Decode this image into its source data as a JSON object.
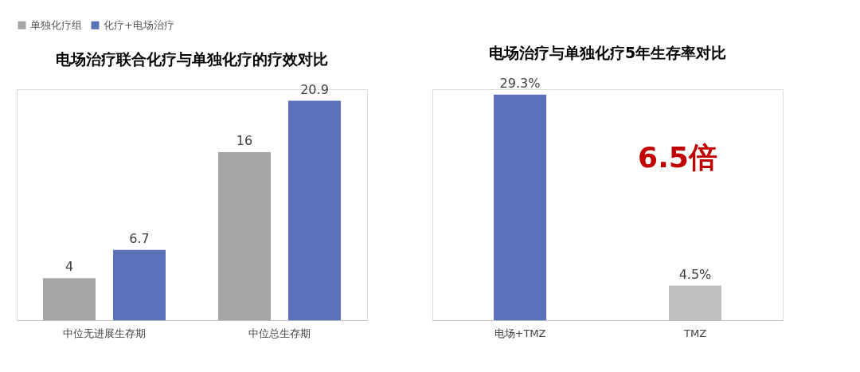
{
  "chart_data": [
    {
      "type": "bar",
      "title": "电场治疗联合化疗与单独化疗的疗效对比",
      "categories": [
        "中位无进展生存期",
        "中位总生存期"
      ],
      "series": [
        {
          "name": "单独化疗组",
          "color": "#a5a5a5",
          "values": [
            4,
            16
          ]
        },
        {
          "name": "化疗+电场治疗",
          "color": "#5b72b8",
          "values": [
            6.7,
            20.9
          ]
        }
      ],
      "data_labels": true,
      "legend": "top",
      "grid": false
    },
    {
      "type": "bar",
      "title": "电场治疗与单独化疗5年生存率对比",
      "categories": [
        "电场+TMZ",
        "TMZ"
      ],
      "values": [
        29.3,
        4.5
      ],
      "colors": [
        "#5b72b8",
        "#bfbfbf"
      ],
      "value_labels": [
        "29.3%",
        "4.5%"
      ],
      "annotations": [
        "6.5倍"
      ],
      "grid": false
    }
  ]
}
